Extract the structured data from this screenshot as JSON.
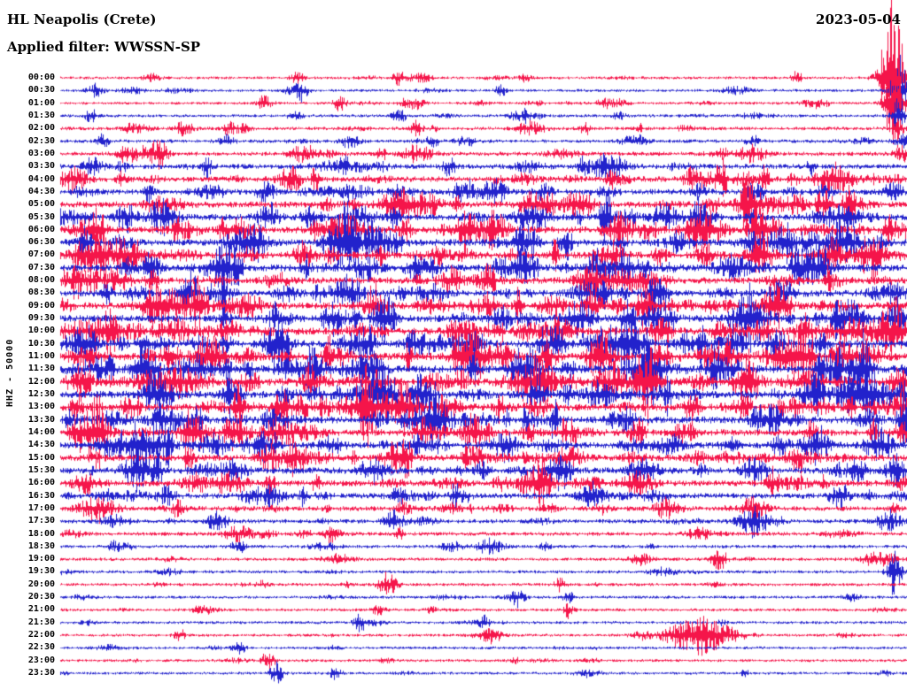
{
  "header": {
    "station_title": "HL Neapolis (Crete)",
    "date": "2023-05-04",
    "applied_filter": "Applied filter: WWSSN-SP"
  },
  "chart_data": {
    "type": "line",
    "subtype": "helicorder-dayplot",
    "title": "HL Neapolis (Crete)",
    "date": "2023-05-04",
    "filter": "WWSSN-SP",
    "ylabel": "HHZ - 50000",
    "xlabel": "",
    "minutes_per_line": 30,
    "lines": 48,
    "grid": false,
    "legend": "none",
    "colors": {
      "red": "#f5154a",
      "blue": "#2222cc"
    },
    "rows": [
      {
        "label": "00:00",
        "color": "red",
        "noise": 1.6,
        "density": 4,
        "max_amp": 7,
        "events": [
          {
            "x": 0.983,
            "amp": 90,
            "w": 9
          },
          {
            "x": 0.28,
            "amp": 8,
            "w": 5
          },
          {
            "x": 0.4,
            "amp": 7,
            "w": 4
          },
          {
            "x": 0.87,
            "amp": 8,
            "w": 4
          }
        ]
      },
      {
        "label": "00:30",
        "color": "blue",
        "noise": 1.6,
        "density": 4,
        "max_amp": 8,
        "events": [
          {
            "x": 0.99,
            "amp": 42,
            "w": 6
          },
          {
            "x": 0.285,
            "amp": 9,
            "w": 5
          },
          {
            "x": 0.52,
            "amp": 8,
            "w": 4
          }
        ]
      },
      {
        "label": "01:00",
        "color": "red",
        "noise": 1.6,
        "density": 5,
        "max_amp": 8,
        "events": [
          {
            "x": 0.985,
            "amp": 55,
            "w": 7
          },
          {
            "x": 0.33,
            "amp": 9,
            "w": 5
          },
          {
            "x": 0.24,
            "amp": 7,
            "w": 4
          }
        ]
      },
      {
        "label": "01:30",
        "color": "blue",
        "noise": 1.7,
        "density": 5,
        "max_amp": 8,
        "events": [
          {
            "x": 0.99,
            "amp": 22,
            "w": 5
          },
          {
            "x": 0.4,
            "amp": 9,
            "w": 5
          },
          {
            "x": 0.55,
            "amp": 7,
            "w": 4
          }
        ]
      },
      {
        "label": "02:00",
        "color": "red",
        "noise": 2,
        "density": 6,
        "max_amp": 9,
        "events": [
          {
            "x": 0.2,
            "amp": 8,
            "w": 5
          },
          {
            "x": 0.62,
            "amp": 8,
            "w": 4
          },
          {
            "x": 0.99,
            "amp": 12,
            "w": 4
          }
        ]
      },
      {
        "label": "02:30",
        "color": "blue",
        "noise": 2,
        "density": 6,
        "max_amp": 9,
        "events": [
          {
            "x": 0.05,
            "amp": 9,
            "w": 4
          },
          {
            "x": 0.44,
            "amp": 8,
            "w": 5
          }
        ]
      },
      {
        "label": "03:00",
        "color": "red",
        "noise": 2.4,
        "density": 8,
        "max_amp": 11,
        "events": [
          {
            "x": 0.12,
            "amp": 10,
            "w": 5
          }
        ]
      },
      {
        "label": "03:30",
        "color": "blue",
        "noise": 2.8,
        "density": 9,
        "max_amp": 12,
        "events": [
          {
            "x": 0.46,
            "amp": 12,
            "w": 5
          }
        ]
      },
      {
        "label": "04:00",
        "color": "red",
        "noise": 3.2,
        "density": 14,
        "max_amp": 16,
        "events": []
      },
      {
        "label": "04:30",
        "color": "blue",
        "noise": 3.2,
        "density": 14,
        "max_amp": 16,
        "events": []
      },
      {
        "label": "05:00",
        "color": "red",
        "noise": 3.6,
        "density": 16,
        "max_amp": 18,
        "events": []
      },
      {
        "label": "05:30",
        "color": "blue",
        "noise": 3.6,
        "density": 16,
        "max_amp": 18,
        "events": []
      },
      {
        "label": "06:00",
        "color": "red",
        "noise": 4,
        "density": 18,
        "max_amp": 20,
        "events": []
      },
      {
        "label": "06:30",
        "color": "blue",
        "noise": 4,
        "density": 18,
        "max_amp": 20,
        "events": []
      },
      {
        "label": "07:00",
        "color": "red",
        "noise": 4,
        "density": 18,
        "max_amp": 20,
        "events": []
      },
      {
        "label": "07:30",
        "color": "blue",
        "noise": 4,
        "density": 18,
        "max_amp": 20,
        "events": []
      },
      {
        "label": "08:00",
        "color": "red",
        "noise": 3.8,
        "density": 16,
        "max_amp": 18,
        "events": []
      },
      {
        "label": "08:30",
        "color": "blue",
        "noise": 3.8,
        "density": 16,
        "max_amp": 18,
        "events": []
      },
      {
        "label": "09:00",
        "color": "red",
        "noise": 4,
        "density": 18,
        "max_amp": 22,
        "events": []
      },
      {
        "label": "09:30",
        "color": "blue",
        "noise": 4,
        "density": 18,
        "max_amp": 22,
        "events": []
      },
      {
        "label": "10:00",
        "color": "red",
        "noise": 4.2,
        "density": 20,
        "max_amp": 24,
        "events": []
      },
      {
        "label": "10:30",
        "color": "blue",
        "noise": 4.2,
        "density": 20,
        "max_amp": 24,
        "events": []
      },
      {
        "label": "11:00",
        "color": "red",
        "noise": 4.4,
        "density": 20,
        "max_amp": 27,
        "events": []
      },
      {
        "label": "11:30",
        "color": "blue",
        "noise": 4.4,
        "density": 20,
        "max_amp": 27,
        "events": []
      },
      {
        "label": "12:00",
        "color": "red",
        "noise": 4.4,
        "density": 20,
        "max_amp": 26,
        "events": []
      },
      {
        "label": "12:30",
        "color": "blue",
        "noise": 4.2,
        "density": 20,
        "max_amp": 24,
        "events": []
      },
      {
        "label": "13:00",
        "color": "red",
        "noise": 4.2,
        "density": 18,
        "max_amp": 24,
        "events": []
      },
      {
        "label": "13:30",
        "color": "blue",
        "noise": 4,
        "density": 18,
        "max_amp": 22,
        "events": []
      },
      {
        "label": "14:00",
        "color": "red",
        "noise": 3.8,
        "density": 16,
        "max_amp": 20,
        "events": []
      },
      {
        "label": "14:30",
        "color": "blue",
        "noise": 3.8,
        "density": 16,
        "max_amp": 20,
        "events": []
      },
      {
        "label": "15:00",
        "color": "red",
        "noise": 3.6,
        "density": 14,
        "max_amp": 18,
        "events": []
      },
      {
        "label": "15:30",
        "color": "blue",
        "noise": 3.6,
        "density": 14,
        "max_amp": 18,
        "events": []
      },
      {
        "label": "16:00",
        "color": "red",
        "noise": 3.4,
        "density": 13,
        "max_amp": 18,
        "events": [
          {
            "x": 0.57,
            "amp": 14,
            "w": 8
          }
        ]
      },
      {
        "label": "16:30",
        "color": "blue",
        "noise": 3.2,
        "density": 12,
        "max_amp": 16,
        "events": []
      },
      {
        "label": "17:00",
        "color": "red",
        "noise": 2.8,
        "density": 10,
        "max_amp": 14,
        "events": []
      },
      {
        "label": "17:30",
        "color": "blue",
        "noise": 2.4,
        "density": 8,
        "max_amp": 12,
        "events": []
      },
      {
        "label": "18:00",
        "color": "red",
        "noise": 2.2,
        "density": 6,
        "max_amp": 10,
        "events": [
          {
            "x": 0.32,
            "amp": 10,
            "w": 5
          }
        ]
      },
      {
        "label": "18:30",
        "color": "blue",
        "noise": 1.9,
        "density": 4,
        "max_amp": 8,
        "events": [
          {
            "x": 0.21,
            "amp": 9,
            "w": 5
          }
        ]
      },
      {
        "label": "19:00",
        "color": "red",
        "noise": 1.9,
        "density": 4,
        "max_amp": 8,
        "events": [
          {
            "x": 0.78,
            "amp": 8,
            "w": 4
          }
        ]
      },
      {
        "label": "19:30",
        "color": "blue",
        "noise": 1.8,
        "density": 3,
        "max_amp": 7,
        "events": [
          {
            "x": 0.985,
            "amp": 28,
            "w": 5
          }
        ]
      },
      {
        "label": "20:00",
        "color": "red",
        "noise": 1.8,
        "density": 3,
        "max_amp": 7,
        "events": [
          {
            "x": 0.386,
            "amp": 14,
            "w": 7
          },
          {
            "x": 0.59,
            "amp": 8,
            "w": 4
          }
        ]
      },
      {
        "label": "20:30",
        "color": "blue",
        "noise": 1.7,
        "density": 3,
        "max_amp": 6,
        "events": [
          {
            "x": 0.54,
            "amp": 10,
            "w": 5
          },
          {
            "x": 0.6,
            "amp": 8,
            "w": 4
          }
        ]
      },
      {
        "label": "21:00",
        "color": "red",
        "noise": 1.7,
        "density": 3,
        "max_amp": 6,
        "events": [
          {
            "x": 0.6,
            "amp": 9,
            "w": 4
          }
        ]
      },
      {
        "label": "21:30",
        "color": "blue",
        "noise": 1.7,
        "density": 3,
        "max_amp": 6,
        "events": [
          {
            "x": 0.355,
            "amp": 11,
            "w": 5
          },
          {
            "x": 0.5,
            "amp": 8,
            "w": 4
          }
        ]
      },
      {
        "label": "22:00",
        "color": "red",
        "noise": 1.6,
        "density": 3,
        "max_amp": 6,
        "events": [
          {
            "x": 0.755,
            "amp": 22,
            "w": 26
          },
          {
            "x": 0.14,
            "amp": 9,
            "w": 4
          }
        ]
      },
      {
        "label": "22:30",
        "color": "blue",
        "noise": 1.6,
        "density": 3,
        "max_amp": 5,
        "events": [
          {
            "x": 0.21,
            "amp": 9,
            "w": 5
          }
        ]
      },
      {
        "label": "23:00",
        "color": "red",
        "noise": 1.6,
        "density": 3,
        "max_amp": 6,
        "events": [
          {
            "x": 0.245,
            "amp": 11,
            "w": 5
          }
        ]
      },
      {
        "label": "23:30",
        "color": "blue",
        "noise": 1.6,
        "density": 3,
        "max_amp": 6,
        "events": [
          {
            "x": 0.255,
            "amp": 12,
            "w": 5
          },
          {
            "x": 0.325,
            "amp": 10,
            "w": 4
          }
        ]
      }
    ]
  }
}
